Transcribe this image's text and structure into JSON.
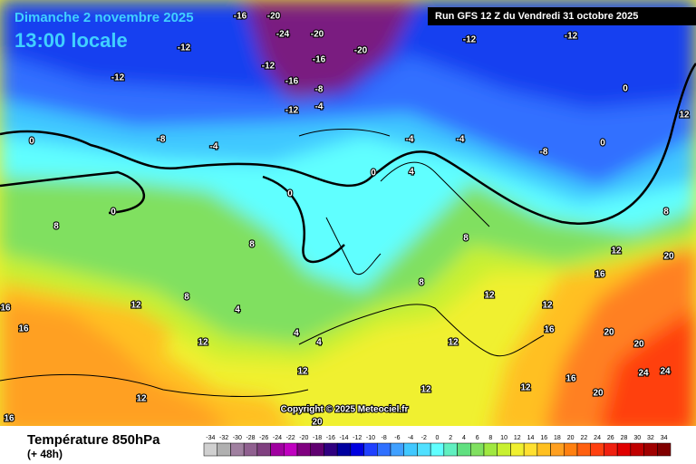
{
  "header": {
    "date": "Dimanche 2 novembre 2025",
    "time": "13:00 locale",
    "run": "Run GFS 12 Z du Vendredi 31 octobre 2025"
  },
  "copyright": "Copyright © 2025 Meteociel.fr",
  "footer": {
    "title": "Température 850hPa",
    "lead": "(+ 48h)"
  },
  "scale": {
    "values": [
      -34,
      -32,
      -30,
      -28,
      -26,
      -24,
      -22,
      -20,
      -18,
      -16,
      -14,
      -12,
      -10,
      -8,
      -6,
      -4,
      -2,
      0,
      2,
      4,
      6,
      8,
      10,
      12,
      14,
      16,
      18,
      20,
      22,
      24,
      26,
      28,
      30,
      32,
      34
    ],
    "colors": [
      "#d0d0d0",
      "#b0b0b0",
      "#a080a0",
      "#906090",
      "#804080",
      "#a000a0",
      "#c000c0",
      "#800080",
      "#600070",
      "#300080",
      "#0000a0",
      "#0000e0",
      "#2040ff",
      "#3070ff",
      "#40a0ff",
      "#40c8ff",
      "#50e0ff",
      "#60ffff",
      "#60f0c0",
      "#60e080",
      "#80e060",
      "#a0e840",
      "#c8f030",
      "#f0f030",
      "#ffe030",
      "#ffc020",
      "#ffa020",
      "#ff8010",
      "#ff6010",
      "#ff4010",
      "#f02010",
      "#e00000",
      "#c00000",
      "#a00000",
      "#800000"
    ]
  },
  "map_labels": [
    -16,
    -20,
    -24,
    -20,
    -12,
    -16,
    -20,
    -12,
    -12,
    -16,
    -8,
    -12,
    -4,
    -12,
    -12,
    -8,
    -8,
    -4,
    -4,
    0,
    0,
    0,
    0,
    0,
    0,
    8,
    8,
    8,
    4,
    4,
    4,
    8,
    12,
    12,
    12,
    12,
    12,
    12,
    16,
    16,
    16,
    16,
    20,
    20,
    20,
    24,
    24,
    20,
    12,
    12,
    16,
    12,
    8,
    12,
    -4,
    4,
    8,
    12,
    20,
    16
  ]
}
